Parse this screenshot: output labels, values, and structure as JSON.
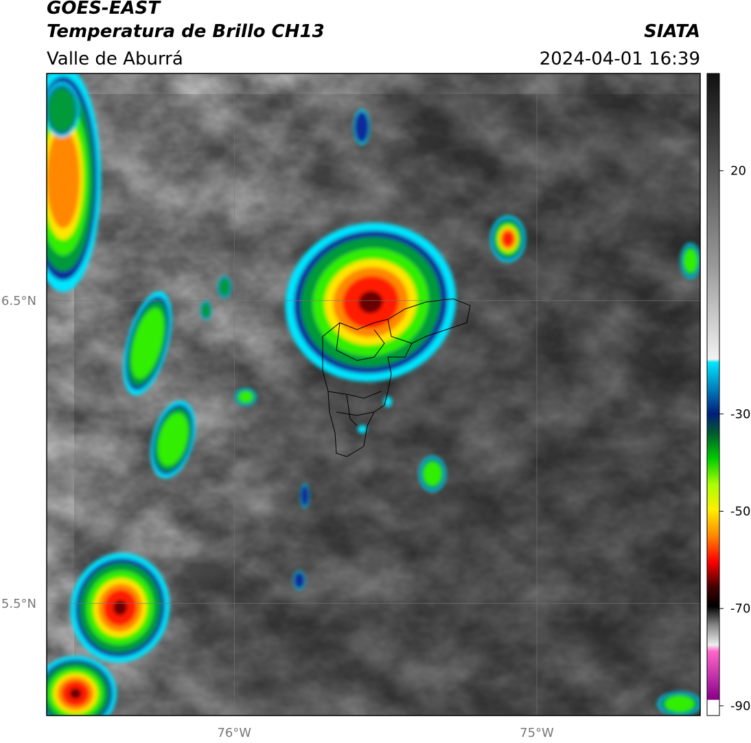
{
  "header": {
    "title": "GOES-EAST",
    "subtitle": "Temperatura de Brillo CH13",
    "region": "Valle de Aburrá",
    "source": "SIATA",
    "timestamp": "2024-04-01 16:39"
  },
  "map": {
    "xlim": [
      -76.62,
      -74.46
    ],
    "ylim": [
      5.13,
      7.25
    ],
    "xticks": [
      {
        "value": -76,
        "label": "76°W"
      },
      {
        "value": -75,
        "label": "75°W"
      }
    ],
    "yticks": [
      {
        "value": 6.5,
        "label": "6.5°N"
      },
      {
        "value": 5.5,
        "label": "5.5°N"
      }
    ],
    "grid": true
  },
  "colorbar": {
    "range": [
      40,
      -92
    ],
    "ticks": [
      20,
      -30,
      -50,
      -70,
      -90
    ]
  }
}
